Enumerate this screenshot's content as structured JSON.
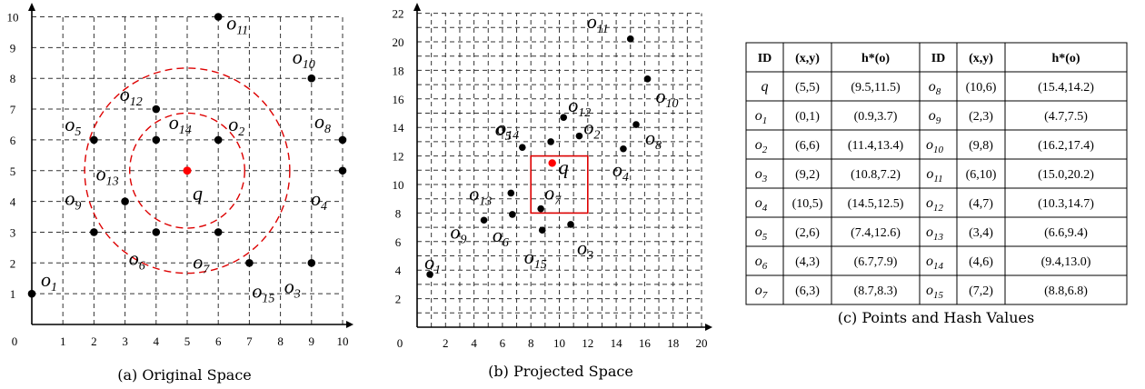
{
  "chart_data": [
    {
      "type": "scatter",
      "caption": "(a) Original Space",
      "xlim": [
        0,
        10
      ],
      "ylim": [
        0,
        10
      ],
      "x_ticks": [
        0,
        1,
        2,
        3,
        4,
        5,
        6,
        7,
        8,
        9,
        10
      ],
      "y_ticks": [
        1,
        2,
        3,
        4,
        5,
        6,
        7,
        8,
        9,
        10
      ],
      "grid": true,
      "query": {
        "name": "q",
        "x": 5,
        "y": 5,
        "color": "#ff0000"
      },
      "circle_radii": [
        1.85,
        3.3
      ],
      "circle_color": "#dd0000",
      "point_color": "#000000",
      "points": [
        {
          "name": "o1",
          "x": 0,
          "y": 1
        },
        {
          "name": "o2",
          "x": 6,
          "y": 6
        },
        {
          "name": "o3",
          "x": 9,
          "y": 2
        },
        {
          "name": "o4",
          "x": 10,
          "y": 5
        },
        {
          "name": "o5",
          "x": 2,
          "y": 6
        },
        {
          "name": "o6",
          "x": 4,
          "y": 3
        },
        {
          "name": "o7",
          "x": 6,
          "y": 3
        },
        {
          "name": "o8",
          "x": 10,
          "y": 6
        },
        {
          "name": "o9",
          "x": 2,
          "y": 3
        },
        {
          "name": "o10",
          "x": 9,
          "y": 8
        },
        {
          "name": "o11",
          "x": 6,
          "y": 10
        },
        {
          "name": "o12",
          "x": 4,
          "y": 7
        },
        {
          "name": "o13",
          "x": 3,
          "y": 4
        },
        {
          "name": "o14",
          "x": 4,
          "y": 6
        },
        {
          "name": "o15",
          "x": 7,
          "y": 2
        }
      ]
    },
    {
      "type": "scatter",
      "caption": "(b) Projected Space",
      "xlim": [
        0,
        20
      ],
      "ylim": [
        0,
        22
      ],
      "x_ticks": [
        0,
        2,
        4,
        6,
        8,
        10,
        12,
        14,
        16,
        18,
        20
      ],
      "y_ticks": [
        2,
        4,
        6,
        8,
        10,
        12,
        14,
        16,
        18,
        20,
        22
      ],
      "grid": true,
      "query": {
        "name": "q",
        "x": 9.5,
        "y": 11.5,
        "color": "#ff0000"
      },
      "query_box": {
        "x": [
          8,
          12
        ],
        "y": [
          8,
          12
        ],
        "color": "#dd0000"
      },
      "point_color": "#000000",
      "points": [
        {
          "name": "o1",
          "x": 0.9,
          "y": 3.7
        },
        {
          "name": "o2",
          "x": 11.4,
          "y": 13.4
        },
        {
          "name": "o3",
          "x": 10.8,
          "y": 7.2
        },
        {
          "name": "o4",
          "x": 14.5,
          "y": 12.5
        },
        {
          "name": "o5",
          "x": 7.4,
          "y": 12.6
        },
        {
          "name": "o6",
          "x": 6.7,
          "y": 7.9
        },
        {
          "name": "o7",
          "x": 8.7,
          "y": 8.3
        },
        {
          "name": "o8",
          "x": 15.4,
          "y": 14.2
        },
        {
          "name": "o9",
          "x": 4.7,
          "y": 7.5
        },
        {
          "name": "o10",
          "x": 16.2,
          "y": 17.4
        },
        {
          "name": "o11",
          "x": 15.0,
          "y": 20.2
        },
        {
          "name": "o12",
          "x": 10.3,
          "y": 14.7
        },
        {
          "name": "o13",
          "x": 6.6,
          "y": 9.4
        },
        {
          "name": "o14",
          "x": 9.4,
          "y": 13.0
        },
        {
          "name": "o15",
          "x": 8.8,
          "y": 6.8
        }
      ]
    },
    {
      "type": "table",
      "caption": "(c) Points and Hash Values",
      "headers": [
        "ID",
        "(x,y)",
        "h*(o)",
        "ID",
        "(x,y)",
        "h*(o)"
      ],
      "rows": [
        [
          {
            "base": "q",
            "sub": ""
          },
          "(5,5)",
          "(9.5,11.5)",
          {
            "base": "o",
            "sub": "8"
          },
          "(10,6)",
          "(15.4,14.2)"
        ],
        [
          {
            "base": "o",
            "sub": "1"
          },
          "(0,1)",
          "(0.9,3.7)",
          {
            "base": "o",
            "sub": "9"
          },
          "(2,3)",
          "(4.7,7.5)"
        ],
        [
          {
            "base": "o",
            "sub": "2"
          },
          "(6,6)",
          "(11.4,13.4)",
          {
            "base": "o",
            "sub": "10"
          },
          "(9,8)",
          "(16.2,17.4)"
        ],
        [
          {
            "base": "o",
            "sub": "3"
          },
          "(9,2)",
          "(10.8,7.2)",
          {
            "base": "o",
            "sub": "11"
          },
          "(6,10)",
          "(15.0,20.2)"
        ],
        [
          {
            "base": "o",
            "sub": "4"
          },
          "(10,5)",
          "(14.5,12.5)",
          {
            "base": "o",
            "sub": "12"
          },
          "(4,7)",
          "(10.3,14.7)"
        ],
        [
          {
            "base": "o",
            "sub": "5"
          },
          "(2,6)",
          "(7.4,12.6)",
          {
            "base": "o",
            "sub": "13"
          },
          "(3,4)",
          "(6.6,9.4)"
        ],
        [
          {
            "base": "o",
            "sub": "6"
          },
          "(4,3)",
          "(6.7,7.9)",
          {
            "base": "o",
            "sub": "14"
          },
          "(4,6)",
          "(9.4,13.0)"
        ],
        [
          {
            "base": "o",
            "sub": "7"
          },
          "(6,3)",
          "(8.7,8.3)",
          {
            "base": "o",
            "sub": "15"
          },
          "(7,2)",
          "(8.8,6.8)"
        ]
      ]
    }
  ]
}
